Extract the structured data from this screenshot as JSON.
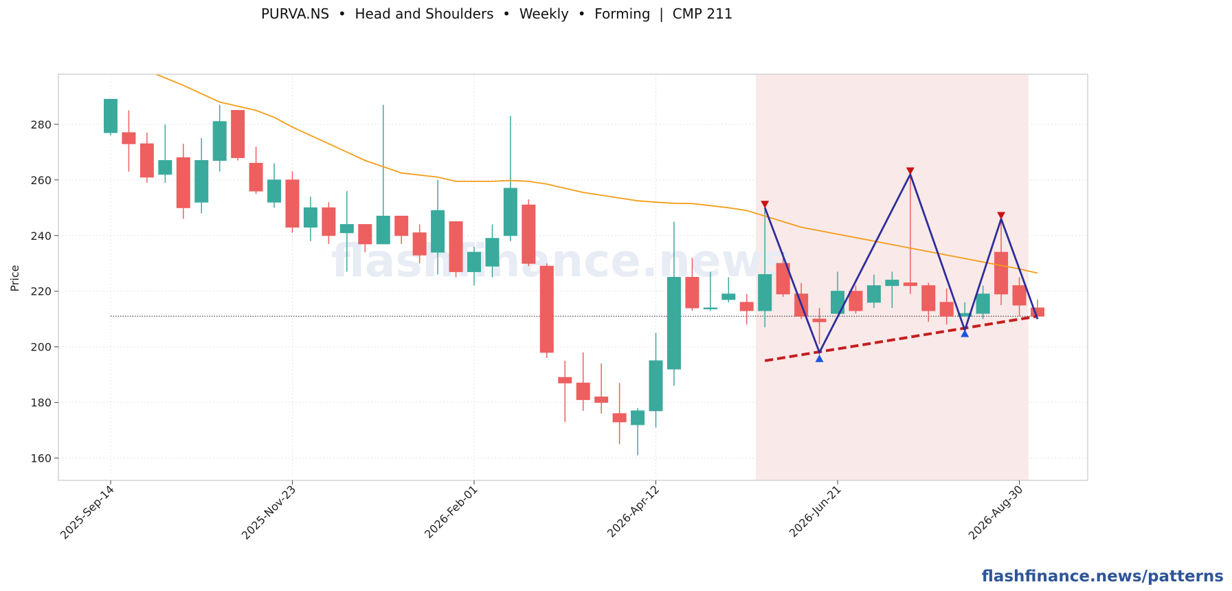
{
  "title": "PURVA.NS  •  Head and Shoulders  •  Weekly  •  Forming  |  CMP 211",
  "footer": "flashfinance.news/patterns",
  "watermark": "flashfinance.news",
  "colors": {
    "up": "#3aaa9d",
    "down": "#ee5f5f",
    "ma": "#f59c18",
    "pattern": "#2e2e9a",
    "neckline": "#c41e1e",
    "peak_marker": "#cc1111",
    "trough_marker": "#1a56e0",
    "zone": "#f9e9e9"
  },
  "chart_data": {
    "type": "candlestick",
    "ylabel": "Price",
    "ylim": [
      152,
      298
    ],
    "yticks": [
      160,
      180,
      200,
      220,
      240,
      260,
      280
    ],
    "xticks": [
      {
        "label": "2025-Sep-14",
        "index": 0
      },
      {
        "label": "2025-Nov-23",
        "index": 10
      },
      {
        "label": "2026-Feb-01",
        "index": 20
      },
      {
        "label": "2026-Apr-12",
        "index": 30
      },
      {
        "label": "2026-Jun-21",
        "index": 40
      },
      {
        "label": "2026-Aug-30",
        "index": 50
      }
    ],
    "grid": true,
    "candles": [
      {
        "date": "2025-Sep-14",
        "o": 277,
        "h": 289,
        "l": 276,
        "c": 289
      },
      {
        "date": "2025-Sep-21",
        "o": 277,
        "h": 285,
        "l": 263,
        "c": 273
      },
      {
        "date": "2025-Sep-28",
        "o": 273,
        "h": 277,
        "l": 259,
        "c": 261
      },
      {
        "date": "2025-Oct-05",
        "o": 262,
        "h": 280,
        "l": 259,
        "c": 267
      },
      {
        "date": "2025-Oct-12",
        "o": 268,
        "h": 273,
        "l": 246,
        "c": 250
      },
      {
        "date": "2025-Oct-19",
        "o": 252,
        "h": 275,
        "l": 248,
        "c": 267
      },
      {
        "date": "2025-Oct-26",
        "o": 267,
        "h": 287,
        "l": 263,
        "c": 281
      },
      {
        "date": "2025-Nov-02",
        "o": 285,
        "h": 285,
        "l": 267,
        "c": 268
      },
      {
        "date": "2025-Nov-09",
        "o": 266,
        "h": 272,
        "l": 255,
        "c": 256
      },
      {
        "date": "2025-Nov-16",
        "o": 252,
        "h": 266,
        "l": 250,
        "c": 260
      },
      {
        "date": "2025-Nov-23",
        "o": 260,
        "h": 263,
        "l": 241,
        "c": 243
      },
      {
        "date": "2025-Nov-30",
        "o": 243,
        "h": 254,
        "l": 238,
        "c": 250
      },
      {
        "date": "2025-Dec-07",
        "o": 250,
        "h": 252,
        "l": 237,
        "c": 240
      },
      {
        "date": "2025-Dec-14",
        "o": 241,
        "h": 256,
        "l": 227,
        "c": 244
      },
      {
        "date": "2025-Dec-21",
        "o": 244,
        "h": 244,
        "l": 234,
        "c": 237
      },
      {
        "date": "2025-Dec-28",
        "o": 237,
        "h": 287,
        "l": 237,
        "c": 247
      },
      {
        "date": "2026-Jan-04",
        "o": 247,
        "h": 247,
        "l": 237,
        "c": 240
      },
      {
        "date": "2026-Jan-11",
        "o": 241,
        "h": 244,
        "l": 230,
        "c": 233
      },
      {
        "date": "2026-Jan-18",
        "o": 234,
        "h": 260,
        "l": 226,
        "c": 249
      },
      {
        "date": "2026-Jan-25",
        "o": 245,
        "h": 245,
        "l": 225,
        "c": 227
      },
      {
        "date": "2026-Feb-01",
        "o": 227,
        "h": 236,
        "l": 222,
        "c": 234
      },
      {
        "date": "2026-Feb-08",
        "o": 229,
        "h": 244,
        "l": 225,
        "c": 239
      },
      {
        "date": "2026-Feb-15",
        "o": 240,
        "h": 283,
        "l": 238,
        "c": 257
      },
      {
        "date": "2026-Feb-22",
        "o": 251,
        "h": 253,
        "l": 229,
        "c": 230
      },
      {
        "date": "2026-Mar-01",
        "o": 229,
        "h": 230,
        "l": 196,
        "c": 198
      },
      {
        "date": "2026-Mar-08",
        "o": 189,
        "h": 195,
        "l": 173,
        "c": 187
      },
      {
        "date": "2026-Mar-15",
        "o": 187,
        "h": 198,
        "l": 177,
        "c": 181
      },
      {
        "date": "2026-Mar-22",
        "o": 182,
        "h": 194,
        "l": 176,
        "c": 180
      },
      {
        "date": "2026-Mar-29",
        "o": 176,
        "h": 187,
        "l": 165,
        "c": 173
      },
      {
        "date": "2026-Apr-05",
        "o": 172,
        "h": 178,
        "l": 161,
        "c": 177
      },
      {
        "date": "2026-Apr-12",
        "o": 177,
        "h": 205,
        "l": 171,
        "c": 195
      },
      {
        "date": "2026-Apr-19",
        "o": 192,
        "h": 245,
        "l": 186,
        "c": 225
      },
      {
        "date": "2026-Apr-26",
        "o": 225,
        "h": 232,
        "l": 213,
        "c": 214
      },
      {
        "date": "2026-May-03",
        "o": 214,
        "h": 227,
        "l": 213,
        "c": 214
      },
      {
        "date": "2026-May-10",
        "o": 217,
        "h": 225,
        "l": 216,
        "c": 219
      },
      {
        "date": "2026-May-17",
        "o": 216,
        "h": 219,
        "l": 208,
        "c": 213
      },
      {
        "date": "2026-May-24",
        "o": 213,
        "h": 250,
        "l": 207,
        "c": 226
      },
      {
        "date": "2026-May-31",
        "o": 230,
        "h": 234,
        "l": 218,
        "c": 219
      },
      {
        "date": "2026-Jun-07",
        "o": 219,
        "h": 223,
        "l": 210,
        "c": 211
      },
      {
        "date": "2026-Jun-14",
        "o": 210,
        "h": 214,
        "l": 201,
        "c": 209
      },
      {
        "date": "2026-Jun-21",
        "o": 212,
        "h": 227,
        "l": 212,
        "c": 220
      },
      {
        "date": "2026-Jun-28",
        "o": 220,
        "h": 222,
        "l": 212,
        "c": 213
      },
      {
        "date": "2026-Jul-05",
        "o": 216,
        "h": 226,
        "l": 214,
        "c": 222
      },
      {
        "date": "2026-Jul-12",
        "o": 222,
        "h": 227,
        "l": 214,
        "c": 224
      },
      {
        "date": "2026-Jul-19",
        "o": 223,
        "h": 262,
        "l": 219,
        "c": 222
      },
      {
        "date": "2026-Jul-26",
        "o": 222,
        "h": 223,
        "l": 209,
        "c": 213
      },
      {
        "date": "2026-Aug-02",
        "o": 216,
        "h": 221,
        "l": 208,
        "c": 211
      },
      {
        "date": "2026-Aug-09",
        "o": 211,
        "h": 216,
        "l": 211,
        "c": 212
      },
      {
        "date": "2026-Aug-16",
        "o": 212,
        "h": 222,
        "l": 210,
        "c": 219
      },
      {
        "date": "2026-Aug-23",
        "o": 234,
        "h": 246,
        "l": 215,
        "c": 219
      },
      {
        "date": "2026-Aug-30",
        "o": 222,
        "h": 225,
        "l": 211,
        "c": 215
      },
      {
        "date": "2026-Sep-06",
        "o": 214,
        "h": 217,
        "l": 211,
        "c": 211
      }
    ],
    "moving_average": {
      "points": [
        [
          2.5,
          298
        ],
        [
          4,
          294
        ],
        [
          6,
          288
        ],
        [
          8,
          285
        ],
        [
          9,
          282.5
        ],
        [
          10,
          279
        ],
        [
          12,
          273
        ],
        [
          13,
          270
        ],
        [
          14,
          267
        ],
        [
          16,
          262.5
        ],
        [
          18,
          261
        ],
        [
          19,
          259.5
        ],
        [
          21,
          259.5
        ],
        [
          22,
          259.8
        ],
        [
          23,
          259.5
        ],
        [
          24,
          258.5
        ],
        [
          25,
          257
        ],
        [
          26,
          255.5
        ],
        [
          28,
          253.5
        ],
        [
          29,
          252.5
        ],
        [
          30,
          252
        ],
        [
          31,
          251.6
        ],
        [
          32,
          251.5
        ],
        [
          34,
          250
        ],
        [
          35,
          249
        ],
        [
          36,
          247
        ],
        [
          37,
          245
        ],
        [
          38,
          243
        ],
        [
          40,
          240.5
        ],
        [
          42,
          238
        ],
        [
          44,
          235.5
        ],
        [
          46,
          233
        ],
        [
          48,
          230.5
        ],
        [
          50,
          228
        ],
        [
          51,
          226.5
        ]
      ]
    },
    "cmp_line": {
      "value": 211,
      "from_index": 0,
      "to_index": 51
    },
    "pattern": {
      "zone": {
        "from_index": 35.5,
        "to_index": 50.5
      },
      "line": [
        [
          36,
          250
        ],
        [
          39,
          198
        ],
        [
          44,
          262
        ],
        [
          47,
          206
        ],
        [
          49,
          246
        ],
        [
          51,
          210
        ]
      ],
      "peaks": [
        [
          36,
          251
        ],
        [
          44,
          263
        ],
        [
          49,
          247
        ]
      ],
      "troughs": [
        [
          39,
          196
        ],
        [
          47,
          205
        ]
      ],
      "neckline": [
        [
          36,
          195
        ],
        [
          51,
          211
        ]
      ]
    }
  }
}
